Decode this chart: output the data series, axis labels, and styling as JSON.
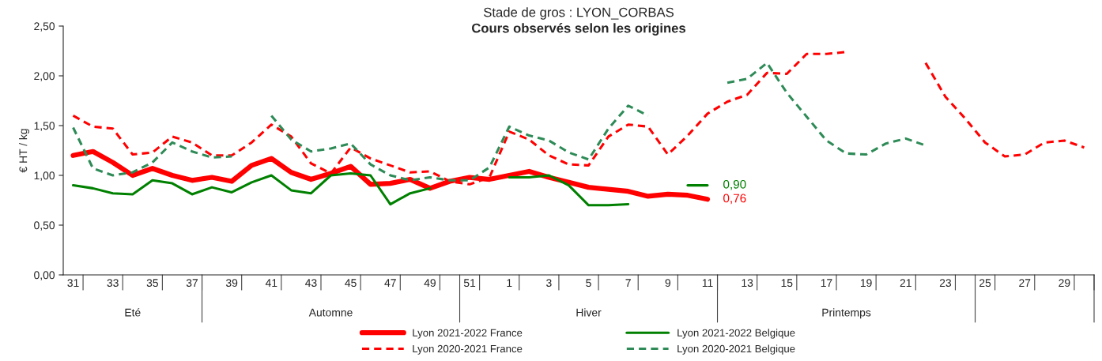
{
  "chart_data": {
    "type": "line",
    "title": "Stade de gros : LYON_CORBAS",
    "subtitle": "Cours observés selon les origines",
    "ylabel": "€ HT / kg",
    "categories": [
      "31",
      null,
      "33",
      null,
      "35",
      null,
      "37",
      null,
      "39",
      null,
      "41",
      null,
      "43",
      null,
      "45",
      null,
      "47",
      null,
      "49",
      null,
      "51",
      null,
      "1",
      null,
      "3",
      null,
      "5",
      null,
      "7",
      null,
      "9",
      null,
      "11",
      null,
      "13",
      null,
      "15",
      null,
      "17",
      null,
      "19",
      null,
      "21",
      null,
      "23",
      null,
      "25",
      null,
      "27",
      null,
      "29",
      null
    ],
    "ylim": [
      0,
      2.5
    ],
    "yticks": [
      {
        "value": 0,
        "label": "0,00"
      },
      {
        "value": 0.5,
        "label": "0,50"
      },
      {
        "value": 1,
        "label": "1,00"
      },
      {
        "value": 1.5,
        "label": "1,50"
      },
      {
        "value": 2,
        "label": "2,00"
      },
      {
        "value": 2.5,
        "label": "2,50"
      }
    ],
    "series": [
      {
        "name": "Lyon 2021-2022 France",
        "color": "#ff0000",
        "line_style": "solid",
        "values": [
          1.2,
          1.24,
          1.13,
          1.0,
          1.07,
          1.0,
          0.95,
          0.98,
          0.94,
          1.1,
          1.17,
          1.03,
          0.96,
          1.02,
          1.09,
          0.91,
          0.92,
          0.96,
          0.87,
          0.94,
          0.98,
          0.96,
          1.0,
          1.04,
          0.98,
          0.93,
          0.88,
          0.86,
          0.84,
          0.79,
          0.81,
          0.8,
          0.76,
          null,
          null,
          null,
          null,
          null,
          null,
          null,
          null,
          null,
          null,
          null,
          null,
          null,
          null,
          null,
          null,
          null,
          null,
          null
        ]
      },
      {
        "name": "Lyon 2021-2022 Belgique",
        "color": "#008000",
        "line_style": "solid",
        "values": [
          0.9,
          0.87,
          0.82,
          0.81,
          0.95,
          0.92,
          0.81,
          0.88,
          0.83,
          0.93,
          1.0,
          0.85,
          0.82,
          1.0,
          1.02,
          1.0,
          0.71,
          0.82,
          0.87,
          null,
          null,
          null,
          0.98,
          0.98,
          1.0,
          0.9,
          0.7,
          0.7,
          0.71,
          null,
          null,
          0.9,
          0.9,
          null,
          null,
          null,
          null,
          null,
          null,
          null,
          null,
          null,
          null,
          null,
          null,
          null,
          null,
          null,
          null,
          null,
          null,
          null
        ]
      },
      {
        "name": "Lyon 2020-2021 France",
        "color": "#ff0000",
        "line_style": "dashed",
        "values": [
          1.6,
          1.49,
          1.47,
          1.21,
          1.23,
          1.39,
          1.33,
          1.2,
          1.2,
          1.33,
          1.51,
          1.39,
          1.12,
          1.02,
          1.28,
          1.17,
          1.1,
          1.03,
          1.04,
          0.94,
          0.91,
          0.98,
          1.44,
          1.36,
          1.2,
          1.11,
          1.1,
          1.39,
          1.51,
          1.49,
          1.21,
          1.4,
          1.62,
          1.74,
          1.81,
          2.03,
          2.02,
          2.22,
          2.22,
          2.24,
          null,
          null,
          null,
          2.13,
          1.79,
          1.57,
          1.33,
          1.19,
          1.21,
          1.33,
          1.35,
          1.28
        ]
      },
      {
        "name": "Lyon 2020-2021 Belgique",
        "color": "#2e8b57",
        "line_style": "dashed",
        "values": [
          1.48,
          1.07,
          1.0,
          1.03,
          1.13,
          1.33,
          1.24,
          1.18,
          1.19,
          null,
          1.6,
          1.36,
          1.24,
          1.27,
          1.32,
          1.11,
          1.0,
          0.95,
          0.98,
          0.95,
          0.95,
          1.08,
          1.49,
          1.4,
          1.35,
          1.23,
          1.16,
          1.47,
          1.7,
          1.6,
          null,
          null,
          null,
          1.93,
          1.97,
          2.13,
          1.83,
          1.59,
          1.35,
          1.22,
          1.21,
          1.32,
          1.37,
          1.3,
          null,
          null,
          null,
          null,
          null,
          null,
          null,
          null
        ]
      }
    ],
    "annotations": [
      {
        "text": "0,90",
        "x": "11",
        "y": 0.9
      },
      {
        "text": "0,76",
        "x": "11",
        "y": 0.76
      },
      "Eté",
      "Automne",
      "Hiver",
      "Printemps"
    ],
    "legend": "bottom"
  }
}
